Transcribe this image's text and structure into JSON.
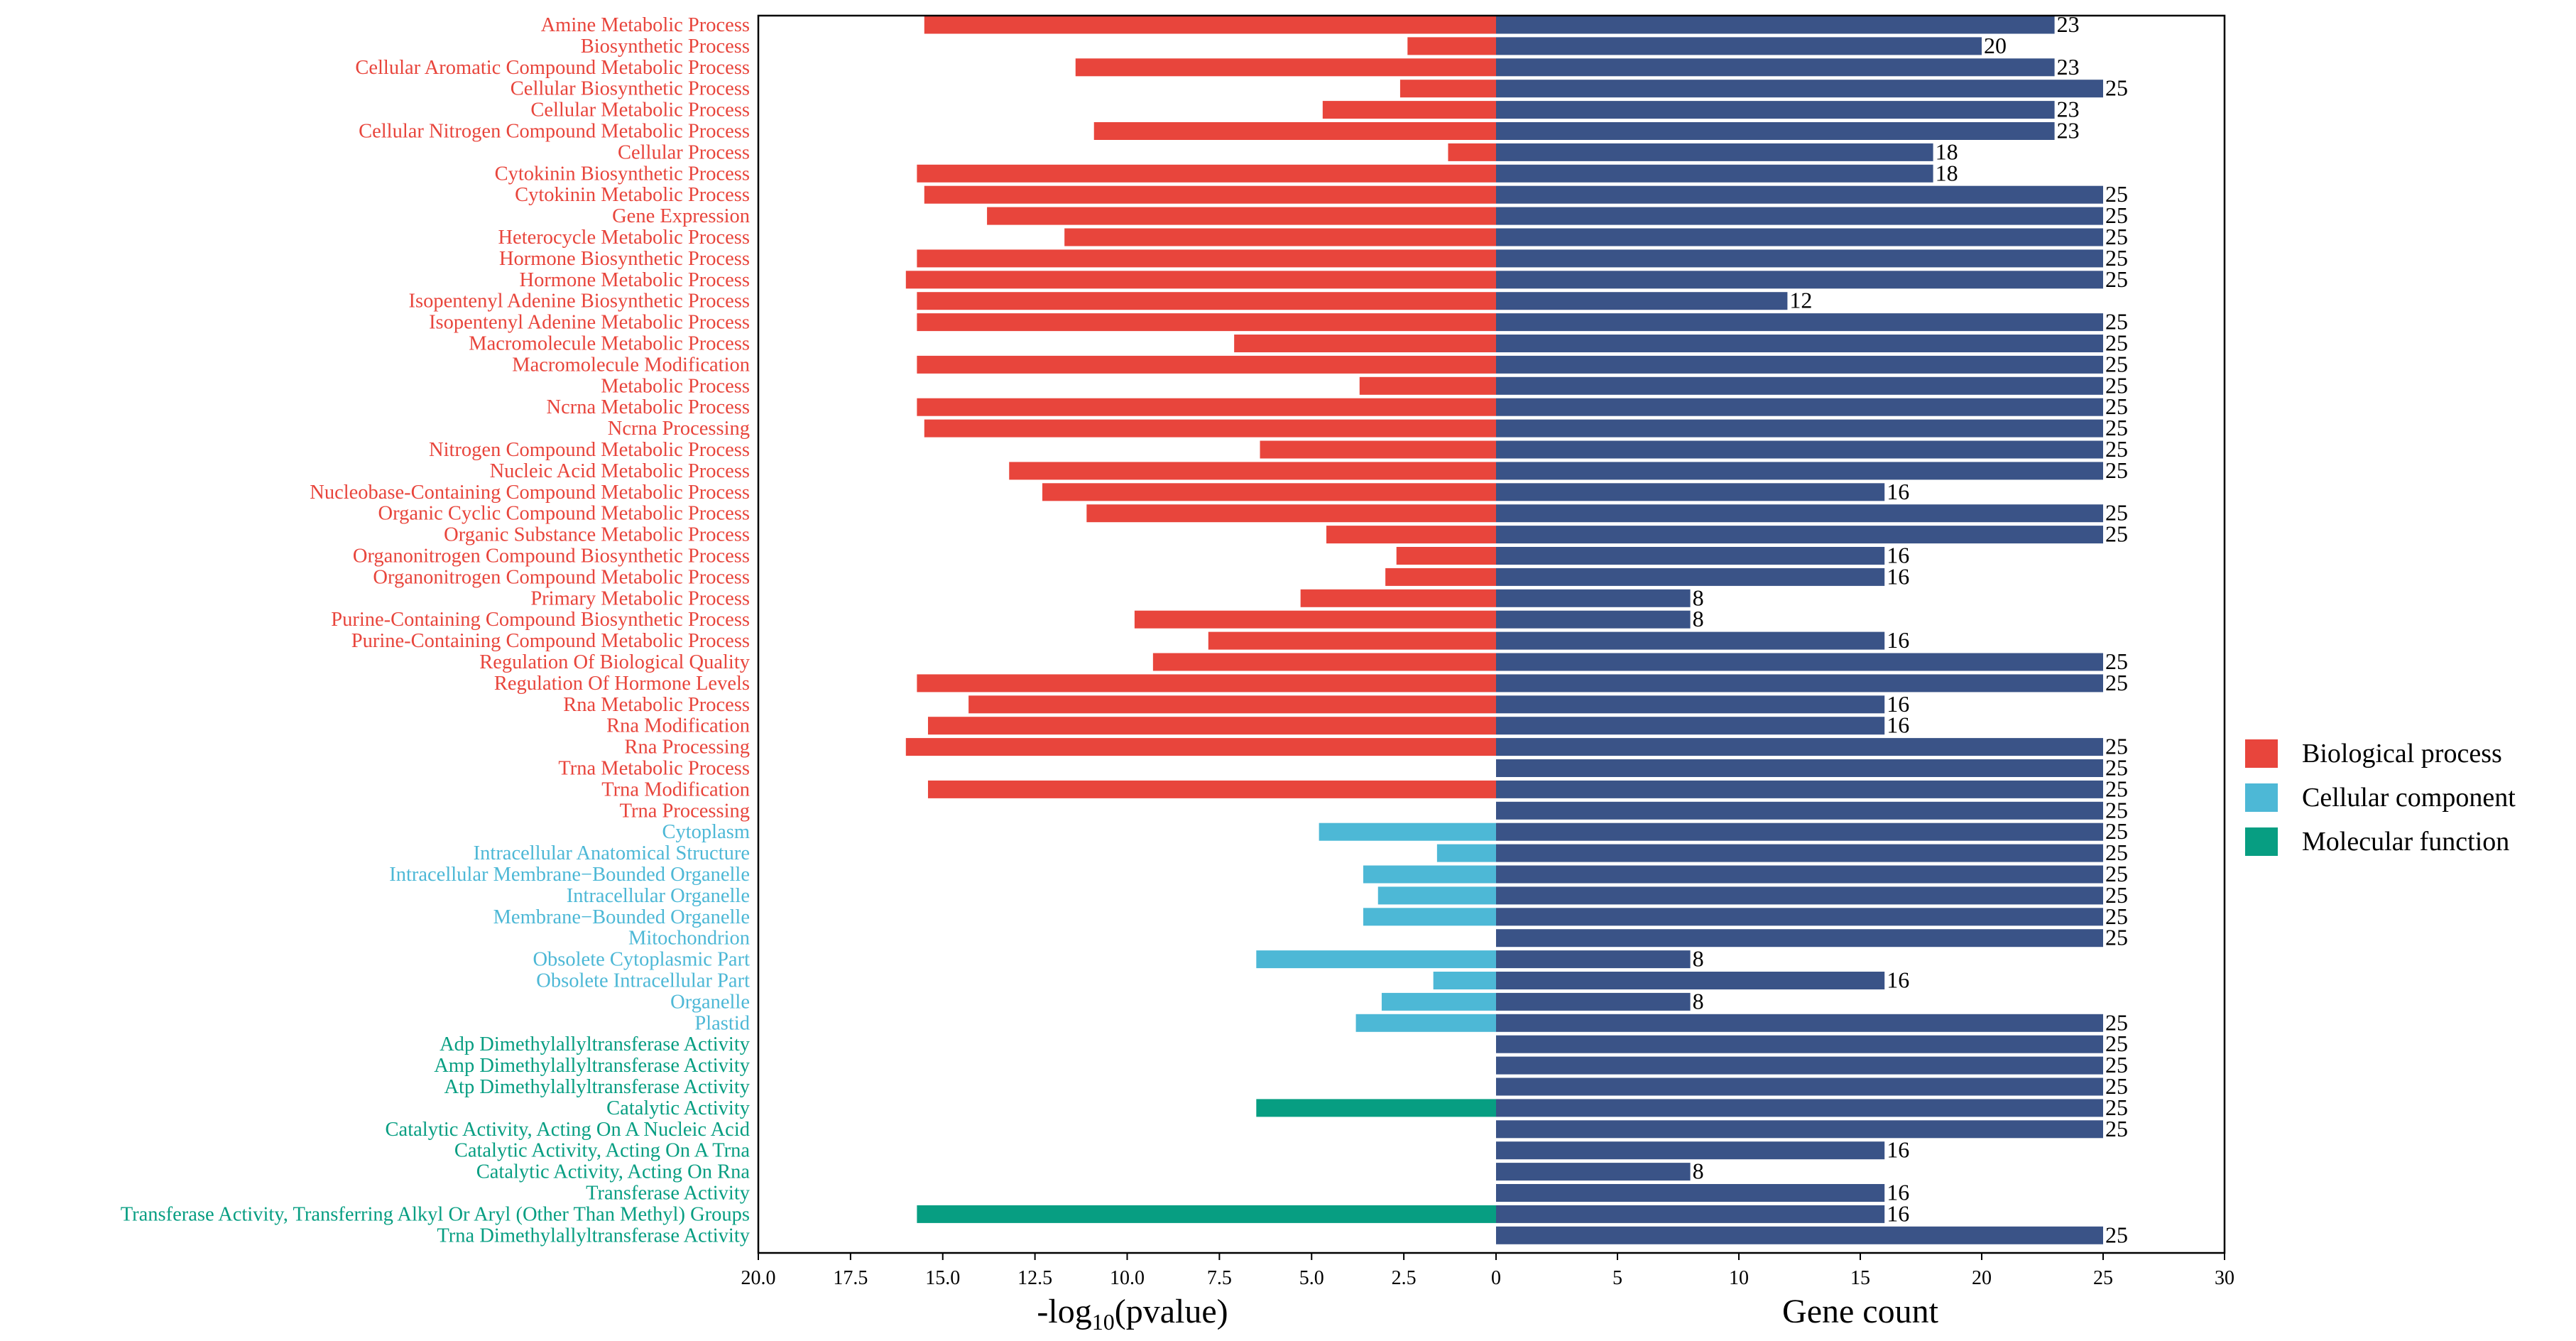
{
  "colors": {
    "Biological process": "#e8453c",
    "Cellular component": "#4db8d6",
    "Molecular function": "#079e82",
    "gene_count": "#3a5387",
    "axis": "#000000"
  },
  "chart_data": {
    "type": "bar",
    "layout": "diverging-horizontal",
    "left_panel": {
      "xlabel_main": "-log",
      "xlabel_sub": "10",
      "xlabel_tail": "(pvalue)",
      "xlim": [
        0,
        20
      ],
      "reversed": true,
      "ticks": [
        "20.0",
        "17.5",
        "15.0",
        "12.5",
        "10.0",
        "7.5",
        "5.0",
        "2.5",
        "0"
      ]
    },
    "right_panel": {
      "xlabel": "Gene count",
      "xlim": [
        0,
        30
      ],
      "ticks": [
        "0",
        "5",
        "10",
        "15",
        "20",
        "25",
        "30"
      ]
    },
    "legend": {
      "position": "right",
      "entries": [
        "Biological process",
        "Cellular component",
        "Molecular function"
      ]
    },
    "categories": [
      {
        "name": "Amine Metabolic Process",
        "group": "Biological process",
        "neg_log10_p": 15.5,
        "count": 23
      },
      {
        "name": "Biosynthetic Process",
        "group": "Biological process",
        "neg_log10_p": 2.4,
        "count": 20
      },
      {
        "name": "Cellular Aromatic Compound Metabolic Process",
        "group": "Biological process",
        "neg_log10_p": 11.4,
        "count": 23
      },
      {
        "name": "Cellular Biosynthetic Process",
        "group": "Biological process",
        "neg_log10_p": 2.6,
        "count": 25
      },
      {
        "name": "Cellular Metabolic Process",
        "group": "Biological process",
        "neg_log10_p": 4.7,
        "count": 23
      },
      {
        "name": "Cellular Nitrogen Compound Metabolic Process",
        "group": "Biological process",
        "neg_log10_p": 10.9,
        "count": 23
      },
      {
        "name": "Cellular Process",
        "group": "Biological process",
        "neg_log10_p": 1.3,
        "count": 18
      },
      {
        "name": "Cytokinin Biosynthetic Process",
        "group": "Biological process",
        "neg_log10_p": 15.7,
        "count": 18
      },
      {
        "name": "Cytokinin Metabolic Process",
        "group": "Biological process",
        "neg_log10_p": 15.5,
        "count": 25
      },
      {
        "name": "Gene Expression",
        "group": "Biological process",
        "neg_log10_p": 13.8,
        "count": 25
      },
      {
        "name": "Heterocycle Metabolic Process",
        "group": "Biological process",
        "neg_log10_p": 11.7,
        "count": 25
      },
      {
        "name": "Hormone Biosynthetic Process",
        "group": "Biological process",
        "neg_log10_p": 15.7,
        "count": 25
      },
      {
        "name": "Hormone Metabolic Process",
        "group": "Biological process",
        "neg_log10_p": 16.0,
        "count": 25
      },
      {
        "name": "Isopentenyl Adenine Biosynthetic Process",
        "group": "Biological process",
        "neg_log10_p": 15.7,
        "count": 12
      },
      {
        "name": "Isopentenyl Adenine Metabolic Process",
        "group": "Biological process",
        "neg_log10_p": 15.7,
        "count": 25
      },
      {
        "name": "Macromolecule Metabolic Process",
        "group": "Biological process",
        "neg_log10_p": 7.1,
        "count": 25
      },
      {
        "name": "Macromolecule Modification",
        "group": "Biological process",
        "neg_log10_p": 15.7,
        "count": 25
      },
      {
        "name": "Metabolic Process",
        "group": "Biological process",
        "neg_log10_p": 3.7,
        "count": 25
      },
      {
        "name": "Ncrna Metabolic Process",
        "group": "Biological process",
        "neg_log10_p": 15.7,
        "count": 25
      },
      {
        "name": "Ncrna Processing",
        "group": "Biological process",
        "neg_log10_p": 15.5,
        "count": 25
      },
      {
        "name": "Nitrogen Compound Metabolic Process",
        "group": "Biological process",
        "neg_log10_p": 6.4,
        "count": 25
      },
      {
        "name": "Nucleic Acid Metabolic Process",
        "group": "Biological process",
        "neg_log10_p": 13.2,
        "count": 25
      },
      {
        "name": "Nucleobase-Containing Compound Metabolic Process",
        "group": "Biological process",
        "neg_log10_p": 12.3,
        "count": 16
      },
      {
        "name": "Organic Cyclic Compound Metabolic Process",
        "group": "Biological process",
        "neg_log10_p": 11.1,
        "count": 25
      },
      {
        "name": "Organic Substance Metabolic Process",
        "group": "Biological process",
        "neg_log10_p": 4.6,
        "count": 25
      },
      {
        "name": "Organonitrogen Compound Biosynthetic Process",
        "group": "Biological process",
        "neg_log10_p": 2.7,
        "count": 16
      },
      {
        "name": "Organonitrogen Compound Metabolic Process",
        "group": "Biological process",
        "neg_log10_p": 3.0,
        "count": 16
      },
      {
        "name": "Primary Metabolic Process",
        "group": "Biological process",
        "neg_log10_p": 5.3,
        "count": 8
      },
      {
        "name": "Purine-Containing Compound Biosynthetic Process",
        "group": "Biological process",
        "neg_log10_p": 9.8,
        "count": 8
      },
      {
        "name": "Purine-Containing Compound Metabolic Process",
        "group": "Biological process",
        "neg_log10_p": 7.8,
        "count": 16
      },
      {
        "name": "Regulation Of Biological Quality",
        "group": "Biological process",
        "neg_log10_p": 9.3,
        "count": 25
      },
      {
        "name": "Regulation Of Hormone Levels",
        "group": "Biological process",
        "neg_log10_p": 15.7,
        "count": 25
      },
      {
        "name": "Rna Metabolic Process",
        "group": "Biological process",
        "neg_log10_p": 14.3,
        "count": 16
      },
      {
        "name": "Rna Modification",
        "group": "Biological process",
        "neg_log10_p": 15.4,
        "count": 16
      },
      {
        "name": "Rna Processing",
        "group": "Biological process",
        "neg_log10_p": 16.0,
        "count": 25
      },
      {
        "name": "Trna Metabolic Process",
        "group": "Biological process",
        "neg_log10_p": 0,
        "count": 25
      },
      {
        "name": "Trna Modification",
        "group": "Biological process",
        "neg_log10_p": 15.4,
        "count": 25
      },
      {
        "name": "Trna Processing",
        "group": "Biological process",
        "neg_log10_p": 0,
        "count": 25
      },
      {
        "name": "Cytoplasm",
        "group": "Cellular component",
        "neg_log10_p": 4.8,
        "count": 25
      },
      {
        "name": "Intracellular Anatomical Structure",
        "group": "Cellular component",
        "neg_log10_p": 1.6,
        "count": 25
      },
      {
        "name": "Intracellular Membrane−Bounded Organelle",
        "group": "Cellular component",
        "neg_log10_p": 3.6,
        "count": 25
      },
      {
        "name": "Intracellular Organelle",
        "group": "Cellular component",
        "neg_log10_p": 3.2,
        "count": 25
      },
      {
        "name": "Membrane−Bounded Organelle",
        "group": "Cellular component",
        "neg_log10_p": 3.6,
        "count": 25
      },
      {
        "name": "Mitochondrion",
        "group": "Cellular component",
        "neg_log10_p": 0,
        "count": 25
      },
      {
        "name": "Obsolete Cytoplasmic Part",
        "group": "Cellular component",
        "neg_log10_p": 6.5,
        "count": 8
      },
      {
        "name": "Obsolete Intracellular Part",
        "group": "Cellular component",
        "neg_log10_p": 1.7,
        "count": 16
      },
      {
        "name": "Organelle",
        "group": "Cellular component",
        "neg_log10_p": 3.1,
        "count": 8
      },
      {
        "name": "Plastid",
        "group": "Cellular component",
        "neg_log10_p": 3.8,
        "count": 25
      },
      {
        "name": "Adp Dimethylallyltransferase Activity",
        "group": "Molecular function",
        "neg_log10_p": 0,
        "count": 25
      },
      {
        "name": "Amp Dimethylallyltransferase Activity",
        "group": "Molecular function",
        "neg_log10_p": 0,
        "count": 25
      },
      {
        "name": "Atp Dimethylallyltransferase Activity",
        "group": "Molecular function",
        "neg_log10_p": 0,
        "count": 25
      },
      {
        "name": "Catalytic Activity",
        "group": "Molecular function",
        "neg_log10_p": 6.5,
        "count": 25
      },
      {
        "name": "Catalytic Activity, Acting On A Nucleic Acid",
        "group": "Molecular function",
        "neg_log10_p": 0,
        "count": 25
      },
      {
        "name": "Catalytic Activity, Acting On A Trna",
        "group": "Molecular function",
        "neg_log10_p": 0,
        "count": 16
      },
      {
        "name": "Catalytic Activity, Acting On Rna",
        "group": "Molecular function",
        "neg_log10_p": 0,
        "count": 8
      },
      {
        "name": "Transferase Activity",
        "group": "Molecular function",
        "neg_log10_p": 0,
        "count": 16
      },
      {
        "name": "Transferase Activity, Transferring Alkyl Or Aryl (Other Than Methyl) Groups",
        "group": "Molecular function",
        "neg_log10_p": 15.7,
        "count": 16
      },
      {
        "name": "Trna Dimethylallyltransferase Activity",
        "group": "Molecular function",
        "neg_log10_p": 0,
        "count": 25
      }
    ]
  }
}
